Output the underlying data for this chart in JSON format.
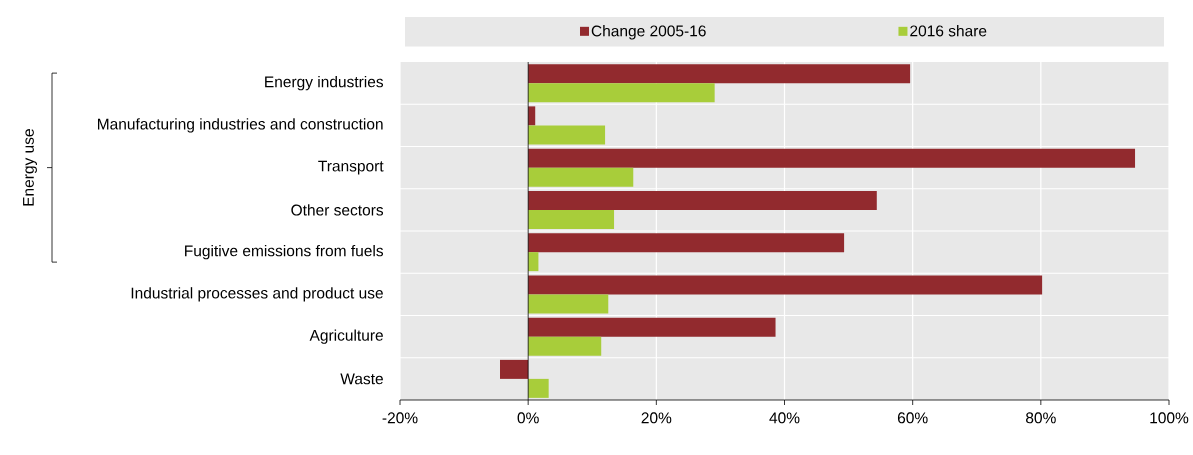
{
  "chart_data": {
    "type": "bar",
    "orientation": "horizontal",
    "categories": [
      "Energy industries",
      "Manufacturing industries and construction",
      "Transport",
      "Other sectors",
      "Fugitive emissions from fuels",
      "Industrial processes and product use",
      "Agriculture",
      "Waste"
    ],
    "series": [
      {
        "name": "Change 2005-16",
        "color": "#922a2e",
        "values": [
          59.6,
          1.1,
          94.7,
          54.4,
          49.3,
          80.2,
          38.6,
          -4.4
        ]
      },
      {
        "name": "2016 share",
        "color": "#a8cd3a",
        "values": [
          29.1,
          12.0,
          16.4,
          13.4,
          1.6,
          12.5,
          11.4,
          3.2
        ]
      }
    ],
    "xlim": [
      -20,
      100
    ],
    "xticks": [
      {
        "value": -20,
        "label": "-20%"
      },
      {
        "value": 0,
        "label": "0%"
      },
      {
        "value": 20,
        "label": "20%"
      },
      {
        "value": 40,
        "label": "40%"
      },
      {
        "value": 60,
        "label": "60%"
      },
      {
        "value": 80,
        "label": "80%"
      },
      {
        "value": 100,
        "label": "100%"
      }
    ],
    "grid": true,
    "legend": "top",
    "annotations": [
      "Energy use"
    ]
  }
}
